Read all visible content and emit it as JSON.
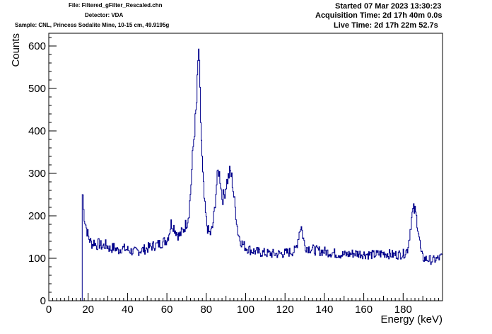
{
  "header": {
    "file": "File: Filtered_gFilter_Rescaled.chn",
    "detector": "Detector: VDA",
    "sample": "Sample: CNL, Princess Sodalite Mine, 10-15 cm, 49.9195g",
    "started": "Started 07 Mar 2023 13:30:23",
    "acquisition": "Acquisition Time: 2d 17h 40m 0.0s",
    "live": "Live Time: 2d 17h 22m 52.7s"
  },
  "chart_data": {
    "type": "line",
    "xlabel": "Energy (keV)",
    "ylabel": "Counts",
    "xlim": [
      0,
      200
    ],
    "ylim": [
      0,
      630
    ],
    "x_ticks": [
      "0",
      "20",
      "40",
      "60",
      "80",
      "100",
      "120",
      "140",
      "160",
      "180"
    ],
    "y_ticks": [
      "0",
      "100",
      "200",
      "300",
      "400",
      "500",
      "600"
    ],
    "grid": false,
    "line_color": "#00008b",
    "series": [
      {
        "x": [
          17.0,
          17.2,
          17.5,
          18,
          19,
          20,
          21,
          22,
          23,
          24,
          25,
          27,
          29,
          31,
          33,
          35,
          37,
          40,
          43,
          46,
          49,
          52,
          55,
          58,
          60,
          61,
          62,
          63,
          64,
          65,
          66,
          68,
          70,
          71,
          72,
          73,
          74,
          74.5,
          75,
          75.5,
          76,
          76.5,
          77,
          78,
          79,
          80,
          81,
          82,
          83,
          84,
          85,
          86,
          87,
          88,
          89,
          90,
          91,
          92,
          93,
          94,
          95,
          96,
          97,
          98,
          100,
          103,
          106,
          110,
          115,
          120,
          125,
          126,
          127,
          128,
          129,
          130,
          133,
          136,
          140,
          145,
          150,
          155,
          160,
          165,
          170,
          175,
          180,
          182,
          183,
          184,
          185,
          186,
          187,
          188,
          189,
          190,
          192,
          195,
          198,
          200
        ],
        "y": [
          0,
          250,
          215,
          195,
          170,
          150,
          140,
          132,
          140,
          128,
          135,
          128,
          132,
          122,
          126,
          118,
          124,
          120,
          115,
          118,
          122,
          128,
          132,
          138,
          145,
          160,
          182,
          178,
          168,
          160,
          152,
          165,
          185,
          205,
          265,
          350,
          410,
          435,
          470,
          540,
          595,
          520,
          430,
          300,
          225,
          182,
          162,
          158,
          172,
          210,
          270,
          310,
          285,
          240,
          250,
          275,
          290,
          305,
          285,
          240,
          200,
          160,
          145,
          135,
          125,
          118,
          115,
          112,
          110,
          112,
          118,
          135,
          160,
          178,
          150,
          128,
          122,
          118,
          116,
          112,
          108,
          112,
          110,
          108,
          112,
          108,
          110,
          120,
          150,
          190,
          215,
          210,
          185,
          150,
          110,
          100,
          98,
          95,
          100,
          105
        ]
      }
    ]
  }
}
